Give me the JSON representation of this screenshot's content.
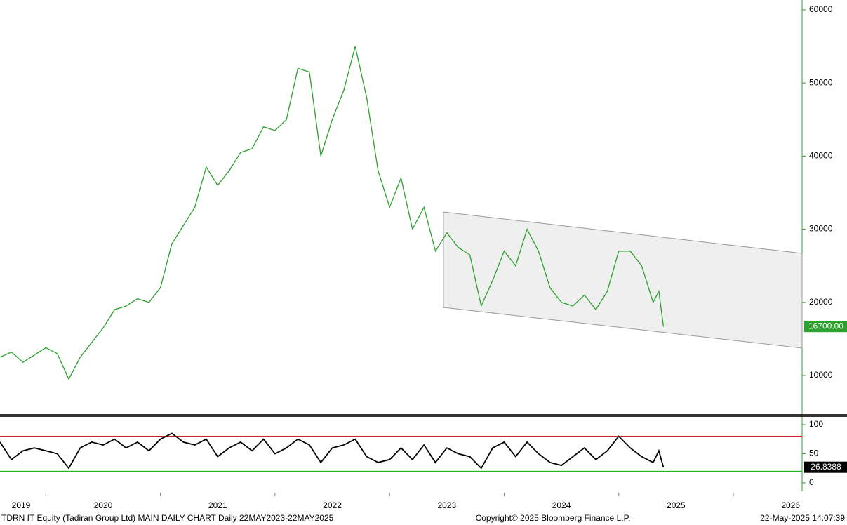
{
  "chart_data": [
    {
      "type": "line",
      "color": "#2ca02c",
      "x": [
        2019.6,
        2019.7,
        2019.8,
        2019.9,
        2020.0,
        2020.1,
        2020.2,
        2020.3,
        2020.4,
        2020.5,
        2020.6,
        2020.7,
        2020.8,
        2020.9,
        2021.0,
        2021.1,
        2021.2,
        2021.3,
        2021.4,
        2021.5,
        2021.6,
        2021.7,
        2021.8,
        2021.9,
        2022.0,
        2022.1,
        2022.2,
        2022.3,
        2022.4,
        2022.5,
        2022.6,
        2022.7,
        2022.8,
        2022.9,
        2023.0,
        2023.1,
        2023.2,
        2023.3,
        2023.4,
        2023.5,
        2023.6,
        2023.7,
        2023.8,
        2023.9,
        2024.0,
        2024.1,
        2024.2,
        2024.3,
        2024.4,
        2024.5,
        2024.6,
        2024.7,
        2024.8,
        2024.9,
        2025.0,
        2025.1,
        2025.2,
        2025.3,
        2025.35,
        2025.39
      ],
      "values": [
        12500,
        13200,
        11800,
        12800,
        13800,
        13000,
        9500,
        12500,
        14500,
        16500,
        19000,
        19500,
        20500,
        20000,
        22000,
        28000,
        30500,
        33000,
        38500,
        36000,
        38000,
        40500,
        41000,
        44000,
        43500,
        45000,
        52000,
        51500,
        40000,
        45000,
        49000,
        55000,
        48000,
        38000,
        33000,
        37000,
        30000,
        33000,
        27000,
        29500,
        27500,
        26500,
        19500,
        23000,
        27000,
        25000,
        30000,
        27000,
        22000,
        20000,
        19500,
        21000,
        19000,
        21500,
        27000,
        27000,
        25000,
        20000,
        21500,
        16700
      ],
      "last_value": 16700,
      "last_label": "16700.00",
      "channel": {
        "x": [
          2023.47,
          2026.6
        ],
        "upper": [
          32360,
          26700
        ],
        "lower": [
          19310,
          13740
        ]
      },
      "xlim": [
        2019.6,
        2026.6
      ],
      "xticks": [
        2019,
        2020,
        2021,
        2022,
        2023,
        2024,
        2025,
        2026
      ],
      "ylim": [
        4720,
        61340
      ],
      "yticks": [
        10000,
        20000,
        30000,
        40000,
        50000,
        60000
      ]
    },
    {
      "type": "line",
      "color": "#000000",
      "x": [
        2019.6,
        2019.7,
        2019.8,
        2019.9,
        2020.0,
        2020.1,
        2020.2,
        2020.3,
        2020.4,
        2020.5,
        2020.6,
        2020.7,
        2020.8,
        2020.9,
        2021.0,
        2021.1,
        2021.2,
        2021.3,
        2021.4,
        2021.5,
        2021.6,
        2021.7,
        2021.8,
        2021.9,
        2022.0,
        2022.1,
        2022.2,
        2022.3,
        2022.4,
        2022.5,
        2022.6,
        2022.7,
        2022.8,
        2022.9,
        2023.0,
        2023.1,
        2023.2,
        2023.3,
        2023.4,
        2023.5,
        2023.6,
        2023.7,
        2023.8,
        2023.9,
        2024.0,
        2024.1,
        2024.2,
        2024.3,
        2024.4,
        2024.5,
        2024.6,
        2024.7,
        2024.8,
        2024.9,
        2025.0,
        2025.1,
        2025.2,
        2025.3,
        2025.35,
        2025.39
      ],
      "values": [
        70,
        40,
        55,
        60,
        55,
        50,
        25,
        60,
        70,
        65,
        75,
        60,
        70,
        55,
        75,
        85,
        70,
        65,
        75,
        45,
        60,
        70,
        55,
        75,
        50,
        60,
        75,
        65,
        35,
        60,
        65,
        75,
        45,
        35,
        40,
        60,
        40,
        65,
        35,
        60,
        50,
        45,
        25,
        60,
        70,
        45,
        70,
        50,
        35,
        30,
        45,
        60,
        40,
        55,
        80,
        60,
        45,
        35,
        55,
        26.8388
      ],
      "last_value": 26.8388,
      "last_label": "26.8388",
      "levels": [
        80,
        20
      ],
      "level_colors": [
        "#cc0000",
        "#00aa00"
      ],
      "xlim": [
        2019.6,
        2026.6
      ],
      "ylim": [
        -14.5,
        110.8
      ],
      "yticks": [
        0,
        50,
        100
      ]
    }
  ],
  "footer": {
    "left": "TDRN IT Equity (Tadiran Group Ltd) MAIN DAILY CHART  Daily 22MAY2023-22MAY2025",
    "center": "Copyright© 2025 Bloomberg Finance L.P.",
    "right": "22-May-2025 14:07:39"
  }
}
